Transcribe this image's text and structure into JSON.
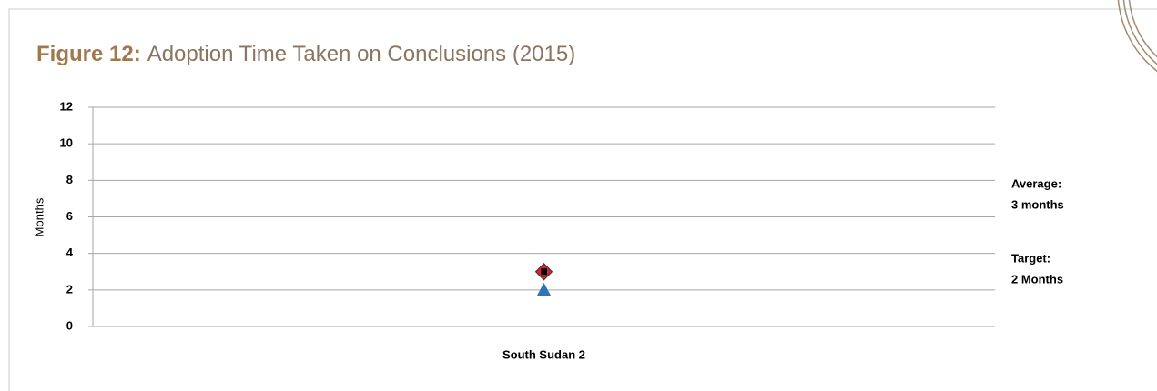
{
  "chart_data": {
    "type": "scatter",
    "figure_label": "Figure 12:",
    "title": "Adoption Time Taken on Conclusions (2015)",
    "ylabel": "Months",
    "categories": [
      "South Sudan 2"
    ],
    "series": [
      {
        "color": "#e31e24",
        "marker": "diamond",
        "values": [
          3
        ]
      },
      {
        "color": "#2e75b6",
        "marker": "triangle",
        "values": [
          2
        ]
      }
    ],
    "ylim": [
      0,
      12
    ],
    "yticks": [
      0,
      2,
      4,
      6,
      8,
      10,
      12
    ],
    "grid": true,
    "annotations": [
      {
        "lines": [
          "Average:",
          "3 months"
        ],
        "color": "#000000"
      },
      {
        "lines": [
          "Target:",
          "2 Months"
        ],
        "color": "#2e75b6"
      }
    ]
  }
}
